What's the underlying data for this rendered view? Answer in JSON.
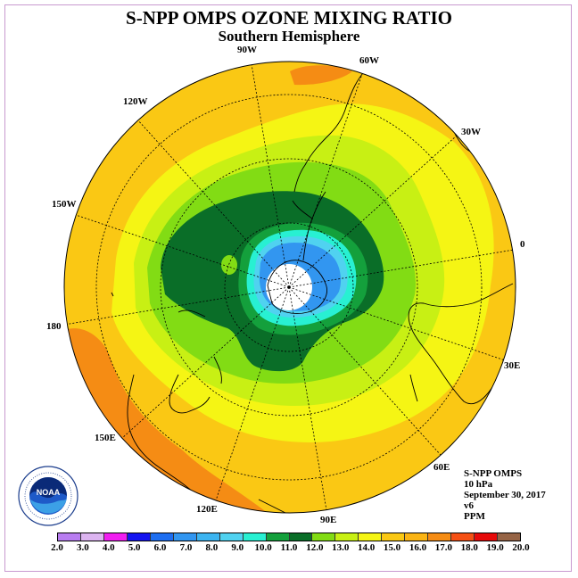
{
  "title": "S-NPP OMPS OZONE MIXING RATIO",
  "subtitle": "Southern Hemisphere",
  "longitude_labels": [
    {
      "text": "90W",
      "name": "lon-label-90w"
    },
    {
      "text": "60W",
      "name": "lon-label-60w"
    },
    {
      "text": "30W",
      "name": "lon-label-30w"
    },
    {
      "text": "0",
      "name": "lon-label-0"
    },
    {
      "text": "30E",
      "name": "lon-label-30e"
    },
    {
      "text": "60E",
      "name": "lon-label-60e"
    },
    {
      "text": "90E",
      "name": "lon-label-90e"
    },
    {
      "text": "120E",
      "name": "lon-label-120e"
    },
    {
      "text": "150E",
      "name": "lon-label-150e"
    },
    {
      "text": "180",
      "name": "lon-label-180"
    },
    {
      "text": "150W",
      "name": "lon-label-150w"
    },
    {
      "text": "120W",
      "name": "lon-label-120w"
    }
  ],
  "info": {
    "instrument": "S-NPP OMPS",
    "level": "10 hPa",
    "date": "September 30, 2017",
    "version": "v6",
    "units": "PPM"
  },
  "logo": {
    "text": "NOAA",
    "icon": "noaa-logo-icon"
  },
  "colorbar": {
    "ticks": [
      "2.0",
      "3.0",
      "4.0",
      "5.0",
      "6.0",
      "7.0",
      "8.0",
      "9.0",
      "10.0",
      "11.0",
      "12.0",
      "13.0",
      "14.0",
      "15.0",
      "16.0",
      "17.0",
      "18.0",
      "19.0",
      "20.0"
    ],
    "colors": [
      "#b87df0",
      "#dcb4f0",
      "#f01ef0",
      "#1414f0",
      "#1e6ef0",
      "#3296f0",
      "#3cb4f0",
      "#50d2f0",
      "#28f0d2",
      "#14a03c",
      "#0a6e28",
      "#82dc14",
      "#c8f014",
      "#f5f514",
      "#fac814",
      "#fab414",
      "#f58c14",
      "#f55014",
      "#e60a0a",
      "#966446"
    ]
  },
  "map": {
    "contour_levels_ppm": [
      {
        "level": 2.0,
        "color": "#ffffff"
      },
      {
        "level": 8.0,
        "color": "#3296f0"
      },
      {
        "level": 9.0,
        "color": "#50d2f0"
      },
      {
        "level": 10.0,
        "color": "#28f0d2"
      },
      {
        "level": 11.0,
        "color": "#14a03c"
      },
      {
        "level": 12.0,
        "color": "#0a6e28"
      },
      {
        "level": 13.0,
        "color": "#82dc14"
      },
      {
        "level": 14.0,
        "color": "#c8f014"
      },
      {
        "level": 15.0,
        "color": "#f5f514"
      },
      {
        "level": 16.0,
        "color": "#fac814"
      },
      {
        "level": 17.0,
        "color": "#f58c14"
      }
    ]
  }
}
